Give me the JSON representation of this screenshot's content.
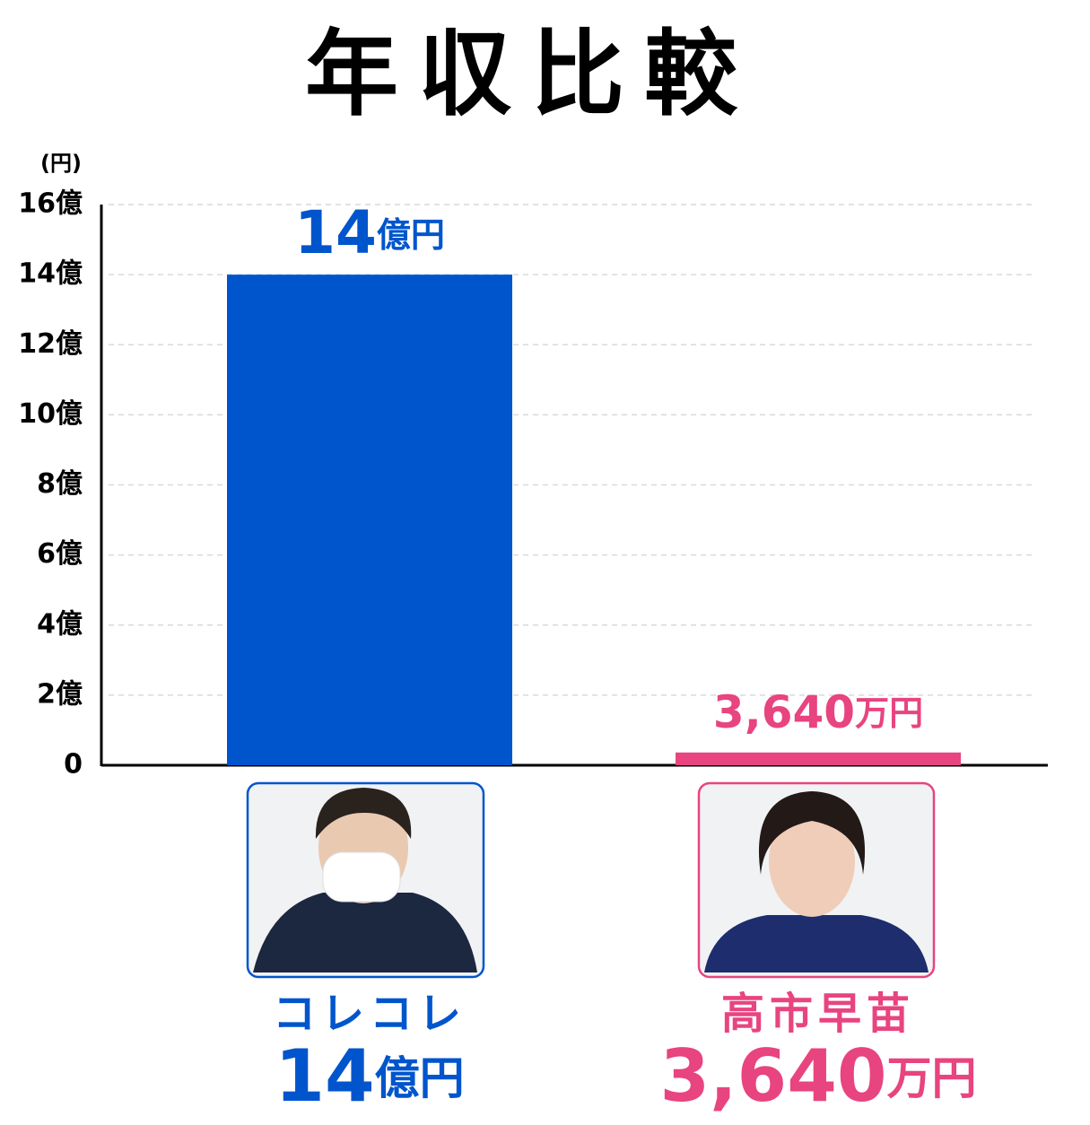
{
  "chart_data": {
    "type": "bar",
    "title": "年収比較",
    "y_unit": "(円)",
    "categories": [
      "コレコレ",
      "高市早苗"
    ],
    "values": [
      1400000000,
      36400000
    ],
    "value_labels": [
      "14億円",
      "3,640万円"
    ],
    "colors": [
      "#0055cc",
      "#e8447f"
    ],
    "ylim": [
      0,
      1600000000
    ],
    "yticks": [
      0,
      {
        "value": 200000000,
        "label": "2億"
      },
      {
        "value": 400000000,
        "label": "4億"
      },
      {
        "value": 600000000,
        "label": "6億"
      },
      {
        "value": 800000000,
        "label": "8億"
      },
      {
        "value": 1000000000,
        "label": "10億"
      },
      {
        "value": 1200000000,
        "label": "12億"
      },
      {
        "value": 1400000000,
        "label": "14億"
      },
      {
        "value": 1600000000,
        "label": "16億"
      }
    ],
    "grid": true
  }
}
